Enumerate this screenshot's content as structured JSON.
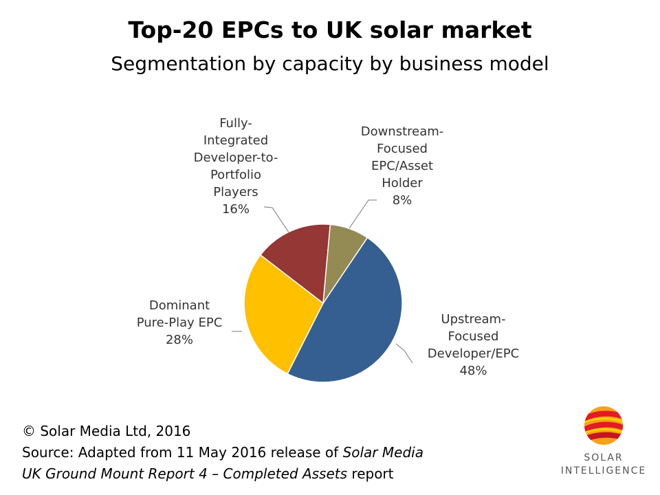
{
  "header": {
    "title": "Top-20 EPCs to UK solar market",
    "subtitle": "Segmentation by capacity by business model"
  },
  "chart_data": {
    "type": "pie",
    "title": "Top-20 EPCs to UK solar market",
    "subtitle": "Segmentation by capacity by business model",
    "slices": [
      {
        "label_lines": [
          "Upstream-",
          "Focused",
          "Developer/EPC"
        ],
        "value": 48,
        "value_label": "48%",
        "color": "#365F91"
      },
      {
        "label_lines": [
          "Dominant",
          "Pure-Play EPC"
        ],
        "value": 28,
        "value_label": "28%",
        "color": "#FFC000"
      },
      {
        "label_lines": [
          "Fully-",
          "Integrated",
          "Developer-to-",
          "Portfolio",
          "Players"
        ],
        "value": 16,
        "value_label": "16%",
        "color": "#953735"
      },
      {
        "label_lines": [
          "Downstream-",
          "Focused",
          "EPC/Asset",
          "Holder"
        ],
        "value": 8,
        "value_label": "8%",
        "color": "#948A54"
      }
    ]
  },
  "footer": {
    "copyright": "© Solar Media Ltd, 2016",
    "source_prefix": "Source: Adapted from 11 May 2016 release of ",
    "source_italic": "Solar Media",
    "report_italic": "UK Ground Mount Report 4 – Completed Assets",
    "report_suffix": " report"
  },
  "logo": {
    "line1": "SOLAR",
    "line2": "INTELLIGENCE",
    "colors": [
      "#E31B23",
      "#F7A21B",
      "#FFD200"
    ]
  }
}
